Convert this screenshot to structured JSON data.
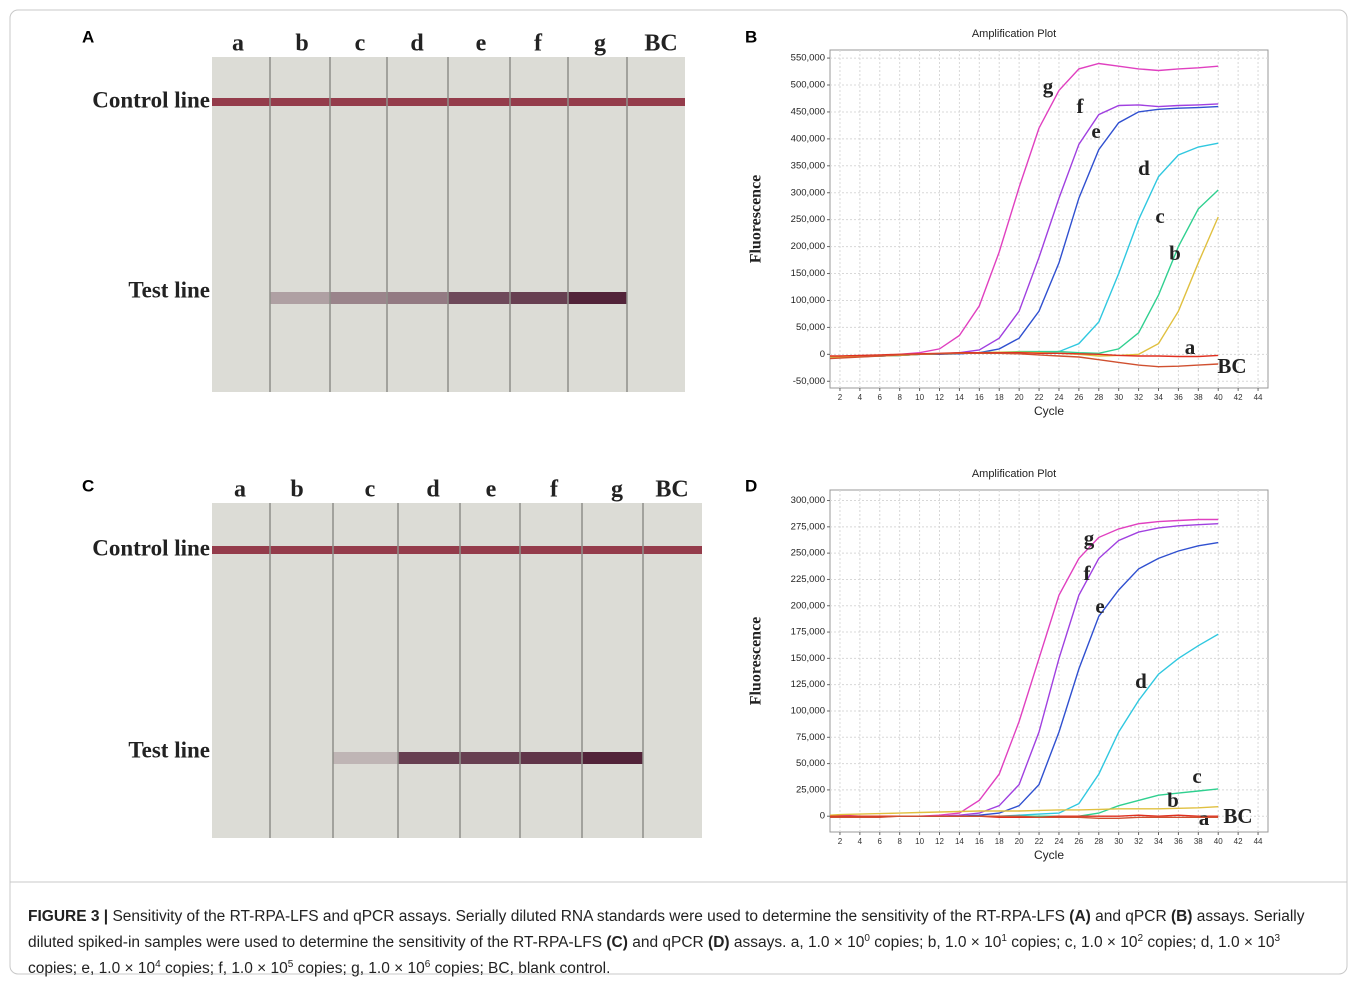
{
  "photos": [
    {
      "panel_label": "A",
      "lanes": [
        "a",
        "b",
        "c",
        "d",
        "e",
        "f",
        "g",
        "BC"
      ],
      "control_label": "Control line",
      "test_label": "Test line"
    },
    {
      "panel_label": "C",
      "lanes": [
        "a",
        "b",
        "c",
        "d",
        "e",
        "f",
        "g",
        "BC"
      ],
      "control_label": "Control line",
      "test_label": "Test line"
    }
  ],
  "chart_data": [
    {
      "type": "line",
      "panel_label": "B",
      "title": "Amplification Plot",
      "x_label": "Cycle",
      "y_label": "Fluorescence",
      "x": [
        1,
        2,
        4,
        6,
        8,
        10,
        12,
        14,
        16,
        18,
        20,
        22,
        24,
        26,
        28,
        30,
        32,
        34,
        36,
        38,
        40
      ],
      "xlim": [
        1,
        45
      ],
      "xticks": [
        2,
        4,
        6,
        8,
        10,
        12,
        14,
        16,
        18,
        20,
        22,
        24,
        26,
        28,
        30,
        32,
        34,
        36,
        38,
        40,
        42,
        44
      ],
      "ylim": [
        -62500,
        565000
      ],
      "yticks": [
        {
          "value": -50000,
          "label": "-50,000"
        },
        0,
        {
          "value": 50000,
          "label": "50,000"
        },
        {
          "value": 100000,
          "label": "100,000"
        },
        {
          "value": 150000,
          "label": "150,000"
        },
        {
          "value": 200000,
          "label": "200,000"
        },
        {
          "value": 250000,
          "label": "250,000"
        },
        {
          "value": 300000,
          "label": "300,000"
        },
        {
          "value": 350000,
          "label": "350,000"
        },
        {
          "value": 400000,
          "label": "400,000"
        },
        {
          "value": 450000,
          "label": "450,000"
        },
        {
          "value": 500000,
          "label": "500,000"
        },
        {
          "value": 550000,
          "label": "550,000"
        }
      ],
      "grid": true,
      "series": [
        {
          "name": "g",
          "color": "#e040c0",
          "values": [
            -5000,
            -5000,
            -4000,
            -3000,
            0,
            3000,
            10000,
            35000,
            90000,
            190000,
            310000,
            420000,
            490000,
            530000,
            540000,
            535000,
            530000,
            527000,
            530000,
            532000,
            535000
          ]
        },
        {
          "name": "f",
          "color": "#a040e0",
          "values": [
            -5000,
            -5000,
            -4000,
            -3000,
            -2000,
            0,
            1000,
            3000,
            8000,
            30000,
            80000,
            180000,
            290000,
            390000,
            445000,
            462000,
            463000,
            460000,
            462000,
            463000,
            465000
          ]
        },
        {
          "name": "e",
          "color": "#3050d0",
          "values": [
            -5000,
            -5000,
            -4000,
            -3000,
            -2000,
            0,
            0,
            1000,
            3000,
            10000,
            30000,
            80000,
            170000,
            290000,
            380000,
            430000,
            450000,
            455000,
            457000,
            458000,
            460000
          ]
        },
        {
          "name": "d",
          "color": "#30c8e0",
          "values": [
            -5000,
            -5000,
            -4000,
            -3000,
            -2000,
            0,
            1000,
            2000,
            2000,
            3000,
            3000,
            3000,
            5000,
            20000,
            60000,
            150000,
            250000,
            330000,
            370000,
            385000,
            392000
          ]
        },
        {
          "name": "c",
          "color": "#30d090",
          "values": [
            -5000,
            -5000,
            -4000,
            -3000,
            -2000,
            0,
            1000,
            2000,
            3000,
            4000,
            5000,
            5000,
            5000,
            3000,
            2000,
            10000,
            40000,
            110000,
            200000,
            270000,
            305000
          ]
        },
        {
          "name": "b",
          "color": "#e0c040",
          "values": [
            -5000,
            -5000,
            -4000,
            -3000,
            -2000,
            0,
            1000,
            2000,
            3000,
            4000,
            4000,
            3000,
            2000,
            0,
            -3000,
            -2000,
            0,
            20000,
            80000,
            170000,
            255000
          ]
        },
        {
          "name": "a",
          "color": "#e03020",
          "values": [
            -3000,
            -3000,
            -2000,
            -1000,
            0,
            1000,
            2000,
            3000,
            3000,
            3000,
            3000,
            2000,
            2000,
            1000,
            0,
            -2000,
            -3000,
            -3000,
            -4000,
            -4000,
            -2000
          ]
        },
        {
          "name": "BC",
          "color": "#d05030",
          "values": [
            -8000,
            -7000,
            -5000,
            -3000,
            -1000,
            0,
            1000,
            2000,
            2000,
            2000,
            1000,
            -1000,
            -3000,
            -5000,
            -10000,
            -15000,
            -20000,
            -23000,
            -22000,
            -20000,
            -18000
          ]
        }
      ]
    },
    {
      "type": "line",
      "panel_label": "D",
      "title": "Amplification Plot",
      "x_label": "Cycle",
      "y_label": "Fluorescence",
      "x": [
        1,
        2,
        4,
        6,
        8,
        10,
        12,
        14,
        16,
        18,
        20,
        22,
        24,
        26,
        28,
        30,
        32,
        34,
        36,
        38,
        40
      ],
      "xlim": [
        1,
        45
      ],
      "xticks": [
        2,
        4,
        6,
        8,
        10,
        12,
        14,
        16,
        18,
        20,
        22,
        24,
        26,
        28,
        30,
        32,
        34,
        36,
        38,
        40,
        42,
        44
      ],
      "ylim": [
        -15000,
        310000
      ],
      "yticks": [
        0,
        {
          "value": 25000,
          "label": "25,000"
        },
        {
          "value": 50000,
          "label": "50,000"
        },
        {
          "value": 75000,
          "label": "75,000"
        },
        {
          "value": 100000,
          "label": "100,000"
        },
        {
          "value": 125000,
          "label": "125,000"
        },
        {
          "value": 150000,
          "label": "150,000"
        },
        {
          "value": 175000,
          "label": "175,000"
        },
        {
          "value": 200000,
          "label": "200,000"
        },
        {
          "value": 225000,
          "label": "225,000"
        },
        {
          "value": 250000,
          "label": "250,000"
        },
        {
          "value": 275000,
          "label": "275,000"
        },
        {
          "value": 300000,
          "label": "300,000"
        }
      ],
      "grid": true,
      "series": [
        {
          "name": "g",
          "color": "#e040c0",
          "values": [
            1000,
            1000,
            0,
            0,
            0,
            0,
            1000,
            3000,
            15000,
            40000,
            90000,
            150000,
            210000,
            245000,
            265000,
            273000,
            278000,
            280000,
            281000,
            282000,
            282000
          ]
        },
        {
          "name": "f",
          "color": "#a040e0",
          "values": [
            0,
            0,
            0,
            0,
            0,
            0,
            0,
            1000,
            3000,
            10000,
            30000,
            80000,
            150000,
            210000,
            245000,
            262000,
            270000,
            274000,
            276000,
            277000,
            278000
          ]
        },
        {
          "name": "e",
          "color": "#3050d0",
          "values": [
            0,
            0,
            0,
            0,
            0,
            0,
            0,
            0,
            1000,
            3000,
            10000,
            30000,
            80000,
            140000,
            190000,
            215000,
            235000,
            245000,
            252000,
            257000,
            260000
          ]
        },
        {
          "name": "d",
          "color": "#30c8e0",
          "values": [
            0,
            0,
            0,
            0,
            0,
            0,
            0,
            0,
            0,
            0,
            1000,
            2000,
            3000,
            12000,
            40000,
            80000,
            110000,
            135000,
            150000,
            162000,
            173000
          ]
        },
        {
          "name": "c",
          "color": "#30d090",
          "values": [
            0,
            0,
            0,
            0,
            0,
            0,
            0,
            0,
            0,
            0,
            0,
            0,
            0,
            0,
            3000,
            10000,
            15000,
            20000,
            22000,
            24000,
            26000
          ]
        },
        {
          "name": "b",
          "color": "#e0c040",
          "values": [
            1000,
            1500,
            2000,
            2500,
            3000,
            3500,
            4000,
            4500,
            5000,
            5000,
            5000,
            5500,
            6000,
            6000,
            6500,
            7000,
            7000,
            7000,
            7500,
            8000,
            9000
          ]
        },
        {
          "name": "a",
          "color": "#e03020",
          "values": [
            0,
            0,
            0,
            0,
            0,
            0,
            0,
            0,
            0,
            -1000,
            -1000,
            -1000,
            0,
            0,
            0,
            0,
            1000,
            0,
            1000,
            0,
            0
          ]
        },
        {
          "name": "BC",
          "color": "#d05030",
          "values": [
            -1000,
            -1000,
            -1000,
            -1000,
            0,
            0,
            0,
            0,
            0,
            0,
            0,
            -1000,
            -1000,
            -1000,
            -2000,
            -2000,
            -1000,
            -1000,
            -1000,
            -1000,
            -1000
          ]
        }
      ]
    }
  ],
  "caption": {
    "segments": [
      "FIGURE 3 |",
      " Sensitivity of the RT-RPA-LFS and qPCR assays. Serially diluted RNA standards were used to determine the sensitivity of the RT-RPA-LFS ",
      "(A)",
      " and qPCR ",
      "(B)",
      " assays. Serially diluted spiked-in samples were used to determine the sensitivity of the RT-RPA-LFS ",
      "(C)",
      " and qPCR ",
      "(D)",
      " assays. a, 1.0 × 10",
      "0",
      " copies; b, 1.0 × 10",
      "1",
      " copies; c, 1.0 × 10",
      "2",
      " copies; d, 1.0 × 10",
      "3",
      " copies; e, 1.0 × 10",
      "4",
      " copies; f, 1.0 × 10",
      "5",
      " copies; g, 1.0 × 10",
      "6",
      " copies; BC, blank control."
    ]
  }
}
